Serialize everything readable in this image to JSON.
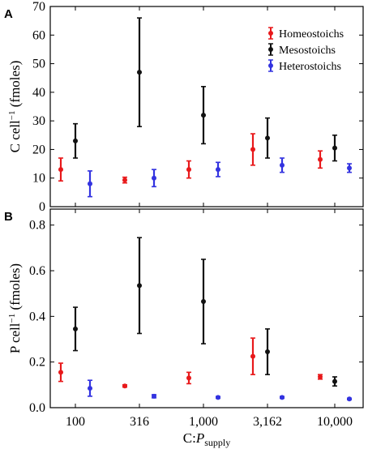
{
  "chart_data": [
    {
      "type": "scatter",
      "panel": "A",
      "ylabel_main": "C cell",
      "ylabel_sup": "−1",
      "ylabel_unit": " (fmoles)",
      "ylim": [
        0,
        70
      ],
      "yticks": [
        0,
        10,
        20,
        30,
        40,
        50,
        60,
        70
      ],
      "ytick_labels": [
        "0",
        "10",
        "20",
        "30",
        "40",
        "50",
        "60",
        "70"
      ],
      "categories": [
        "100",
        "316",
        "1,000",
        "3,162",
        "10,000"
      ],
      "legend_position": "top-right",
      "series": [
        {
          "name": "Homeostoichs",
          "color": "#e8191b",
          "points": [
            {
              "y": 13,
              "lo": 9,
              "hi": 17
            },
            {
              "y": 9.3,
              "lo": 8.3,
              "hi": 10.3
            },
            {
              "y": 13,
              "lo": 10,
              "hi": 16
            },
            {
              "y": 20,
              "lo": 14.5,
              "hi": 25.5
            },
            {
              "y": 16.5,
              "lo": 13.5,
              "hi": 19.5
            }
          ]
        },
        {
          "name": "Mesostoichs",
          "color": "#111111",
          "points": [
            {
              "y": 23,
              "lo": 17,
              "hi": 29
            },
            {
              "y": 47,
              "lo": 28,
              "hi": 66
            },
            {
              "y": 32,
              "lo": 22,
              "hi": 42
            },
            {
              "y": 24,
              "lo": 17,
              "hi": 31
            },
            {
              "y": 20.5,
              "lo": 16,
              "hi": 25
            }
          ]
        },
        {
          "name": "Heterostoichs",
          "color": "#3333e0",
          "points": [
            {
              "y": 8,
              "lo": 3.5,
              "hi": 12.5
            },
            {
              "y": 10,
              "lo": 7,
              "hi": 13
            },
            {
              "y": 13,
              "lo": 10.5,
              "hi": 15.5
            },
            {
              "y": 14.5,
              "lo": 12,
              "hi": 17
            },
            {
              "y": 13.5,
              "lo": 12,
              "hi": 15
            }
          ]
        }
      ]
    },
    {
      "type": "scatter",
      "panel": "B",
      "ylabel_main": "P cell",
      "ylabel_sup": "−1",
      "ylabel_unit": " (fmoles)",
      "ylim": [
        0,
        0.87
      ],
      "yticks": [
        0,
        0.2,
        0.4,
        0.6,
        0.8
      ],
      "ytick_labels": [
        "0.0",
        "0.2",
        "0.4",
        "0.6",
        "0.8"
      ],
      "categories": [
        "100",
        "316",
        "1,000",
        "3,162",
        "10,000"
      ],
      "xlabel_main": "C:",
      "xlabel_italic": "P",
      "xlabel_sub": "supply",
      "series": [
        {
          "name": "Homeostoichs",
          "color": "#e8191b",
          "points": [
            {
              "y": 0.155,
              "lo": 0.115,
              "hi": 0.195
            },
            {
              "y": 0.095,
              "lo": 0.09,
              "hi": 0.1
            },
            {
              "y": 0.13,
              "lo": 0.105,
              "hi": 0.155
            },
            {
              "y": 0.225,
              "lo": 0.145,
              "hi": 0.305
            },
            {
              "y": 0.135,
              "lo": 0.125,
              "hi": 0.145
            }
          ]
        },
        {
          "name": "Mesostoichs",
          "color": "#111111",
          "points": [
            {
              "y": 0.345,
              "lo": 0.25,
              "hi": 0.44
            },
            {
              "y": 0.535,
              "lo": 0.325,
              "hi": 0.745
            },
            {
              "y": 0.465,
              "lo": 0.28,
              "hi": 0.65
            },
            {
              "y": 0.245,
              "lo": 0.145,
              "hi": 0.345
            },
            {
              "y": 0.115,
              "lo": 0.095,
              "hi": 0.135
            }
          ]
        },
        {
          "name": "Heterostoichs",
          "color": "#3333e0",
          "points": [
            {
              "y": 0.085,
              "lo": 0.05,
              "hi": 0.12
            },
            {
              "y": 0.05,
              "lo": 0.043,
              "hi": 0.057
            },
            {
              "y": 0.045,
              "lo": 0.041,
              "hi": 0.049
            },
            {
              "y": 0.045,
              "lo": 0.041,
              "hi": 0.049
            },
            {
              "y": 0.038,
              "lo": 0.035,
              "hi": 0.041
            }
          ]
        }
      ]
    }
  ]
}
